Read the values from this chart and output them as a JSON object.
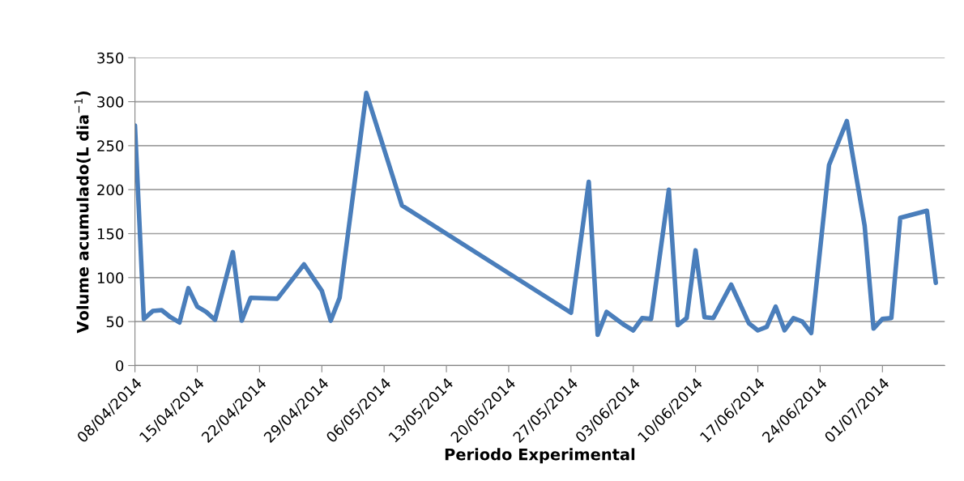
{
  "chart_data": {
    "type": "line",
    "xlabel": "Periodo Experimental",
    "ylabel": "Volume acumulado(L dia$^{−1}$)",
    "x": [
      "2014-04-08",
      "2014-04-09",
      "2014-04-10",
      "2014-04-11",
      "2014-04-12",
      "2014-04-13",
      "2014-04-14",
      "2014-04-15",
      "2014-04-16",
      "2014-04-17",
      "2014-04-19",
      "2014-04-20",
      "2014-04-21",
      "2014-04-24",
      "2014-04-27",
      "2014-04-29",
      "2014-04-30",
      "2014-05-01",
      "2014-05-04",
      "2014-05-08",
      "2014-05-27",
      "2014-05-29",
      "2014-05-30",
      "2014-05-31",
      "2014-06-02",
      "2014-06-03",
      "2014-06-04",
      "2014-06-05",
      "2014-06-07",
      "2014-06-08",
      "2014-06-09",
      "2014-06-10",
      "2014-06-11",
      "2014-06-12",
      "2014-06-14",
      "2014-06-16",
      "2014-06-17",
      "2014-06-18",
      "2014-06-19",
      "2014-06-20",
      "2014-06-21",
      "2014-06-22",
      "2014-06-23",
      "2014-06-25",
      "2014-06-27",
      "2014-06-29",
      "2014-06-30",
      "2014-07-01",
      "2014-07-02",
      "2014-07-03",
      "2014-07-06",
      "2014-07-07"
    ],
    "series": [
      {
        "color": "#4a7ebb",
        "values": [
          273,
          53,
          62,
          63,
          55,
          49,
          88,
          67,
          61,
          52,
          129,
          51,
          77,
          76,
          115,
          85,
          51,
          77,
          310,
          182,
          60,
          209,
          35,
          61,
          46,
          40,
          54,
          53,
          200,
          46,
          54,
          131,
          55,
          54,
          92,
          48,
          40,
          44,
          67,
          40,
          54,
          50,
          37,
          228,
          278,
          159,
          42,
          53,
          54,
          168,
          176,
          94
        ]
      }
    ],
    "xlim": [
      "2014-04-08",
      "2014-07-08"
    ],
    "xticks": [
      {
        "value": "2014-04-08",
        "label": "08/04/2014"
      },
      {
        "value": "2014-04-15",
        "label": "15/04/2014"
      },
      {
        "value": "2014-04-22",
        "label": "22/04/2014"
      },
      {
        "value": "2014-04-29",
        "label": "29/04/2014"
      },
      {
        "value": "2014-05-06",
        "label": "06/05/2014"
      },
      {
        "value": "2014-05-13",
        "label": "13/05/2014"
      },
      {
        "value": "2014-05-20",
        "label": "20/05/2014"
      },
      {
        "value": "2014-05-27",
        "label": "27/05/2014"
      },
      {
        "value": "2014-06-03",
        "label": "03/06/2014"
      },
      {
        "value": "2014-06-10",
        "label": "10/06/2014"
      },
      {
        "value": "2014-06-17",
        "label": "17/06/2014"
      },
      {
        "value": "2014-06-24",
        "label": "24/06/2014"
      },
      {
        "value": "2014-07-01",
        "label": "01/07/2014"
      }
    ],
    "ylim": [
      0,
      350
    ],
    "yticks": [
      0,
      50,
      100,
      150,
      200,
      250,
      300,
      350
    ],
    "grid": "y",
    "marker": "none",
    "line_style": "solid"
  }
}
